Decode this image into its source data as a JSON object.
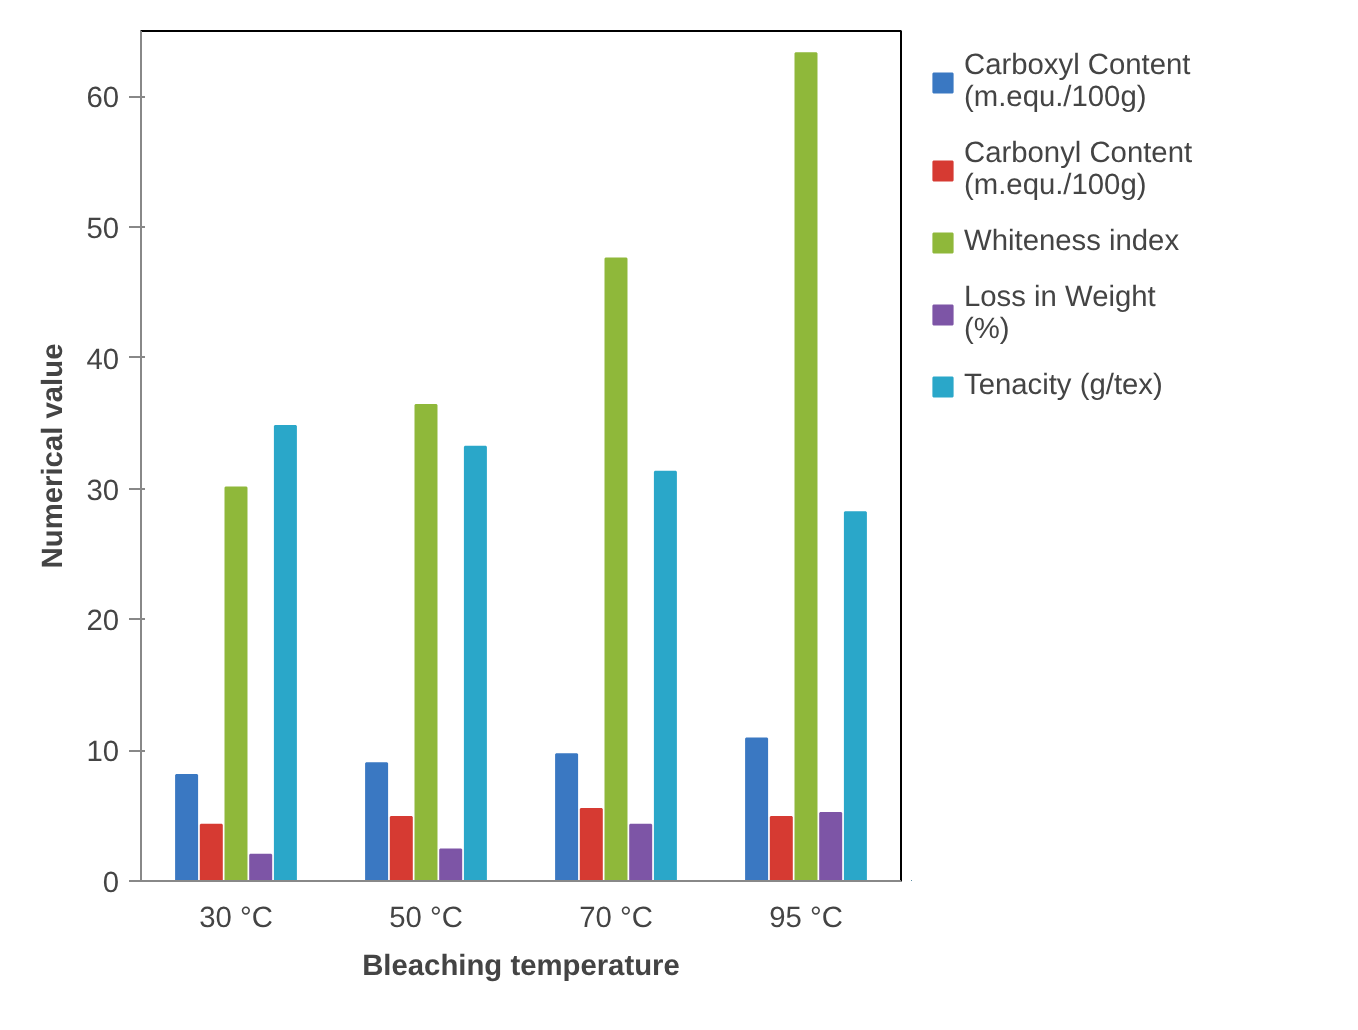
{
  "chart_data": {
    "type": "bar",
    "xlabel": "Bleaching temperature",
    "ylabel": "Numerical value",
    "categories": [
      "30 °C",
      "50 °C",
      "70 °C",
      "95 °C"
    ],
    "series": [
      {
        "name": "Carboxyl Content (m.equ./100g)",
        "color": "#3a78c2",
        "values": [
          8.1,
          9.0,
          9.7,
          10.9
        ]
      },
      {
        "name": "Carbonyl Content (m.equ./100g)",
        "color": "#d63a32",
        "values": [
          4.3,
          4.9,
          5.5,
          4.9
        ]
      },
      {
        "name": "Whiteness index",
        "color": "#8fb83a",
        "values": [
          30.1,
          36.4,
          47.6,
          63.3
        ]
      },
      {
        "name": "Loss in Weight (%)",
        "color": "#7d55a6",
        "values": [
          2.0,
          2.4,
          4.3,
          5.2
        ]
      },
      {
        "name": "Tenacity (g/tex)",
        "color": "#2aa7c9",
        "values": [
          34.8,
          33.2,
          31.3,
          28.2
        ]
      }
    ],
    "ylim": [
      0,
      65
    ],
    "yticks": [
      0,
      10,
      20,
      30,
      40,
      50,
      60
    ],
    "grid": false,
    "legend": "right"
  }
}
